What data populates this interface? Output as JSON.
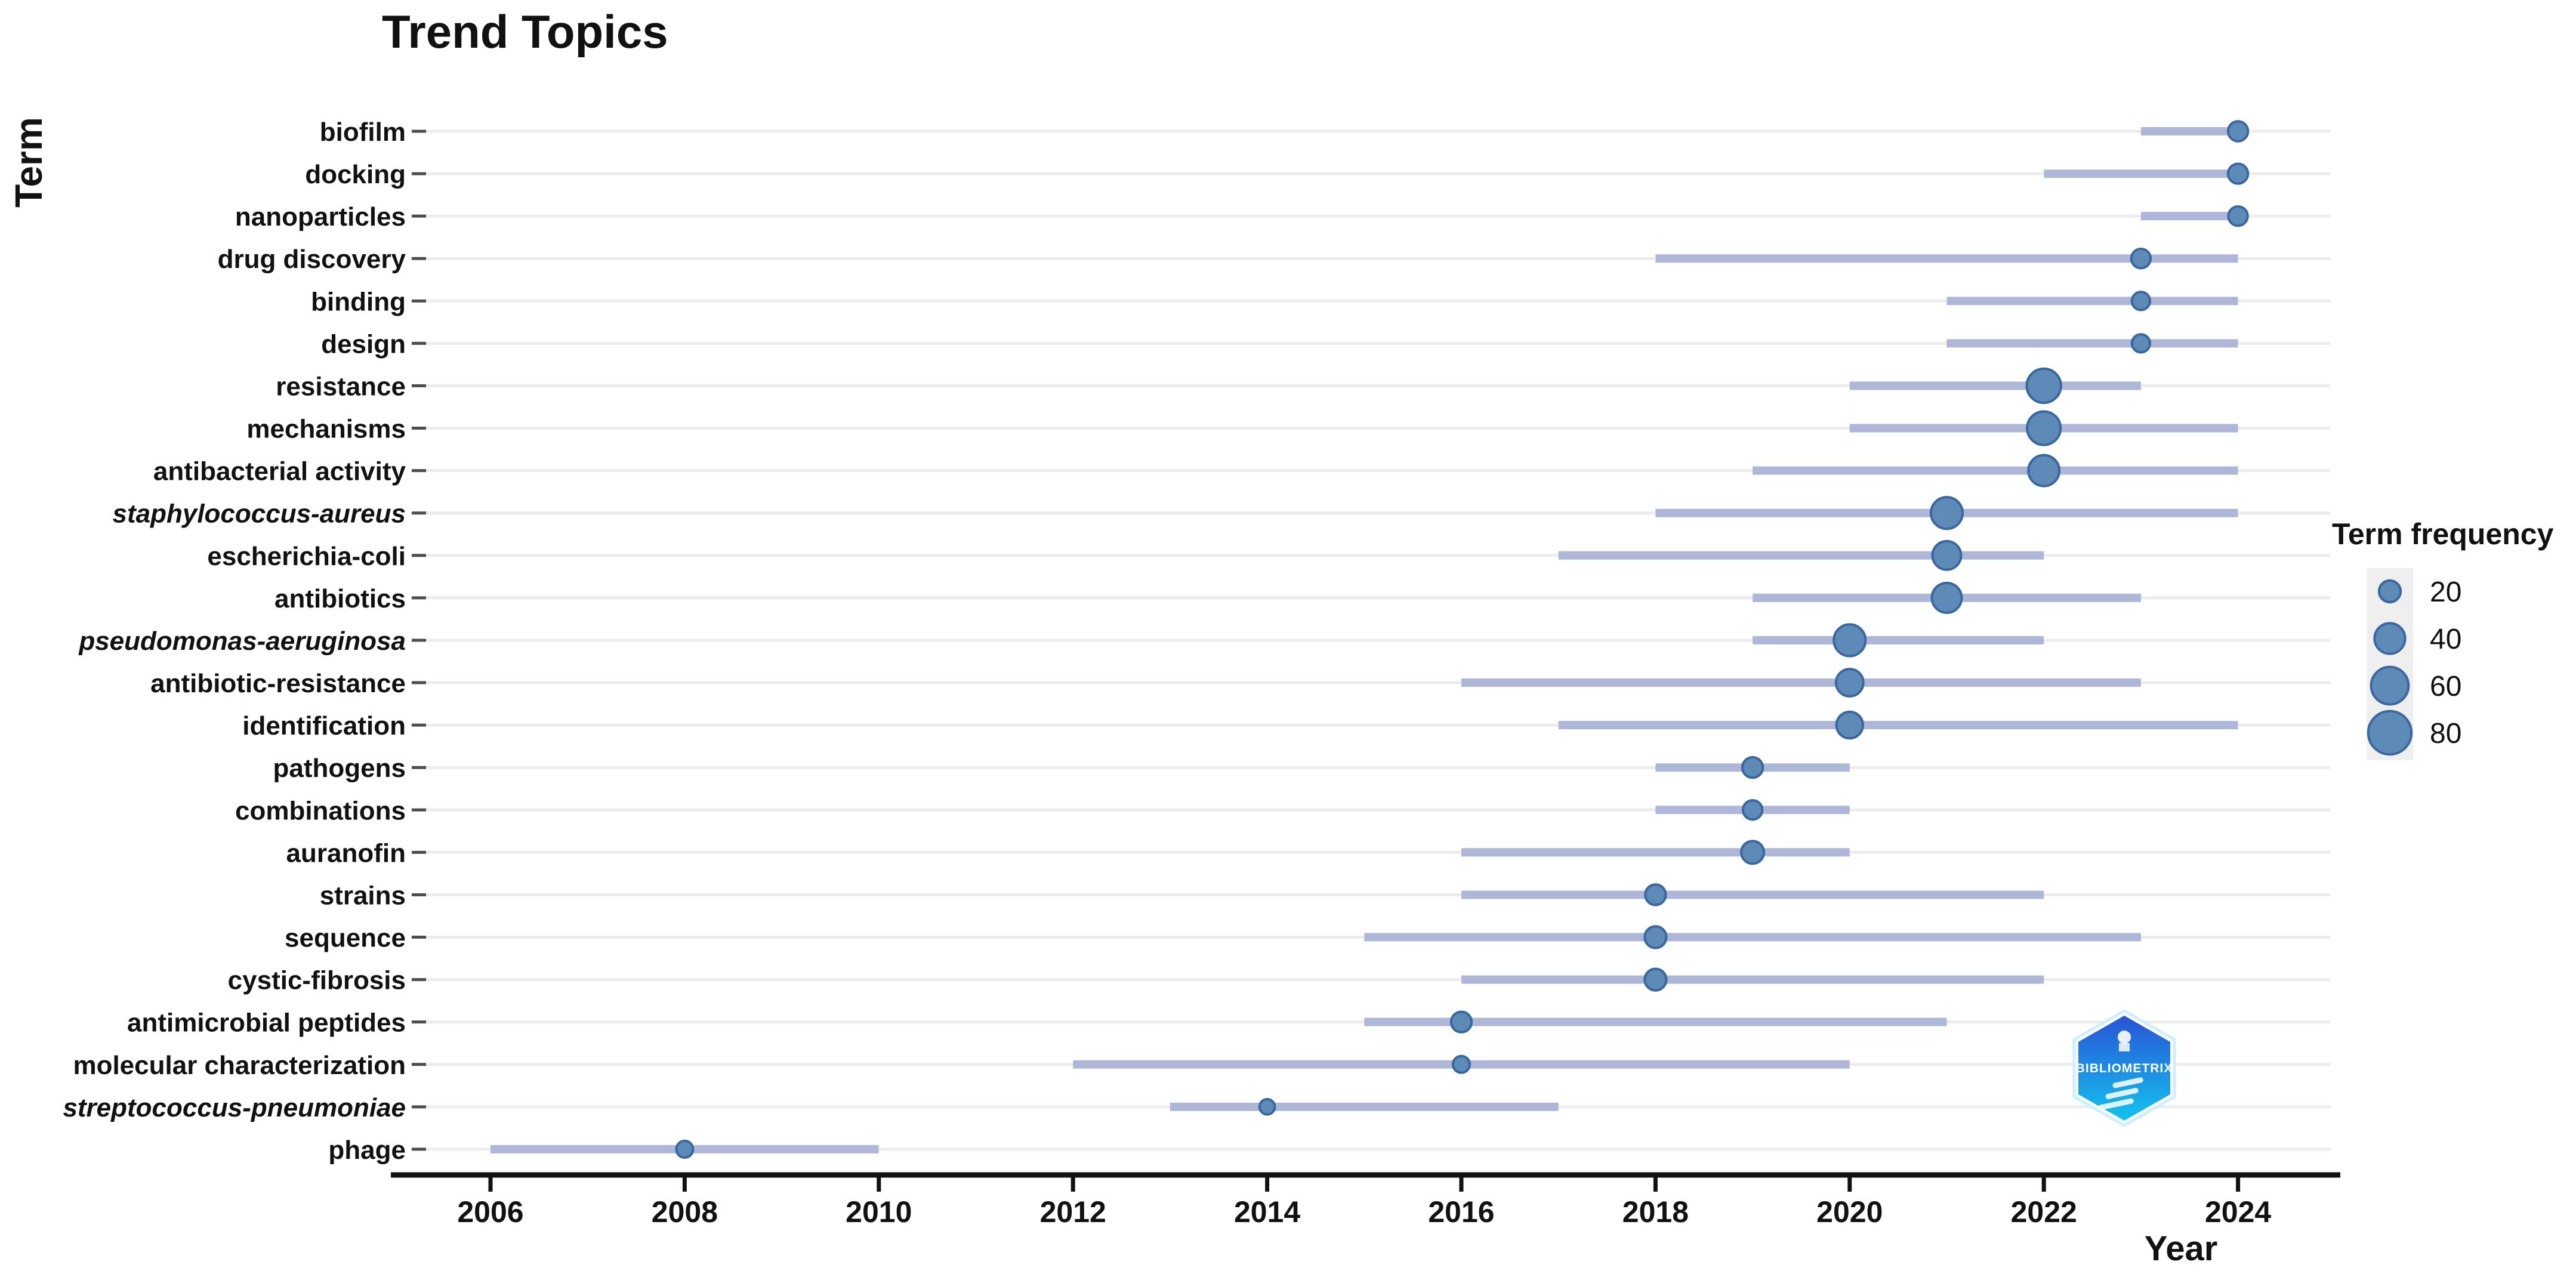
{
  "header": {
    "title": "Trend Topics"
  },
  "axes": {
    "y_label": "Term",
    "x_label": "Year",
    "x_ticks": [
      2006,
      2008,
      2010,
      2012,
      2014,
      2016,
      2018,
      2020,
      2022,
      2024
    ]
  },
  "legend": {
    "title": "Term frequency",
    "sizes": [
      20,
      40,
      60,
      80
    ]
  },
  "watermark": {
    "text": "BIBLIOMETRIX"
  },
  "colors": {
    "dot_fill": "#5d8ab6",
    "dot_stroke": "#3a679f",
    "whisker": "#aeb7d7",
    "gridline": "#ececec",
    "axis": "#111111",
    "y_tick": "#4d4d4d",
    "legend_key_bg": "#efefef",
    "logo_top": "#2953d6",
    "logo_bottom": "#12c4ee",
    "logo_ring": "#cfeefe"
  },
  "chart_data": {
    "type": "scatter",
    "title": "Trend Topics",
    "xlabel": "Year",
    "ylabel": "Term",
    "x_range": [
      2005.2,
      2025.0
    ],
    "x_ticks": [
      2006,
      2008,
      2010,
      2012,
      2014,
      2016,
      2018,
      2020,
      2022,
      2024
    ],
    "grid": "horizontal-only",
    "legend_position": "right",
    "bubble_size_legend": {
      "title": "Term frequency",
      "values": [
        20,
        40,
        60,
        80
      ]
    },
    "terms": [
      {
        "label": "biofilm",
        "italic": false,
        "year_q1": 2023,
        "year_median": 2024,
        "year_q3": 2024,
        "freq": 17
      },
      {
        "label": "docking",
        "italic": false,
        "year_q1": 2022,
        "year_median": 2024,
        "year_q3": 2024,
        "freq": 17
      },
      {
        "label": "nanoparticles",
        "italic": false,
        "year_q1": 2023,
        "year_median": 2024,
        "year_q3": 2024,
        "freq": 16
      },
      {
        "label": "drug discovery",
        "italic": false,
        "year_q1": 2018,
        "year_median": 2023,
        "year_q3": 2024,
        "freq": 16
      },
      {
        "label": "binding",
        "italic": false,
        "year_q1": 2021,
        "year_median": 2023,
        "year_q3": 2024,
        "freq": 14
      },
      {
        "label": "design",
        "italic": false,
        "year_q1": 2021,
        "year_median": 2023,
        "year_q3": 2024,
        "freq": 14
      },
      {
        "label": "resistance",
        "italic": false,
        "year_q1": 2020,
        "year_median": 2022,
        "year_q3": 2023,
        "freq": 50
      },
      {
        "label": "mechanisms",
        "italic": false,
        "year_q1": 2020,
        "year_median": 2022,
        "year_q3": 2024,
        "freq": 48
      },
      {
        "label": "antibacterial activity",
        "italic": false,
        "year_q1": 2019,
        "year_median": 2022,
        "year_q3": 2024,
        "freq": 41
      },
      {
        "label": "staphylococcus-aureus",
        "italic": true,
        "year_q1": 2018,
        "year_median": 2021,
        "year_q3": 2024,
        "freq": 43
      },
      {
        "label": "escherichia-coli",
        "italic": false,
        "year_q1": 2017,
        "year_median": 2021,
        "year_q3": 2022,
        "freq": 35
      },
      {
        "label": "antibiotics",
        "italic": false,
        "year_q1": 2019,
        "year_median": 2021,
        "year_q3": 2023,
        "freq": 38
      },
      {
        "label": "pseudomonas-aeruginosa",
        "italic": true,
        "year_q1": 2019,
        "year_median": 2020,
        "year_q3": 2022,
        "freq": 43
      },
      {
        "label": "antibiotic-resistance",
        "italic": false,
        "year_q1": 2016,
        "year_median": 2020,
        "year_q3": 2023,
        "freq": 32
      },
      {
        "label": "identification",
        "italic": false,
        "year_q1": 2017,
        "year_median": 2020,
        "year_q3": 2024,
        "freq": 30
      },
      {
        "label": "pathogens",
        "italic": false,
        "year_q1": 2018,
        "year_median": 2019,
        "year_q3": 2020,
        "freq": 18
      },
      {
        "label": "combinations",
        "italic": false,
        "year_q1": 2018,
        "year_median": 2019,
        "year_q3": 2020,
        "freq": 16
      },
      {
        "label": "auranofin",
        "italic": false,
        "year_q1": 2016,
        "year_median": 2019,
        "year_q3": 2020,
        "freq": 22
      },
      {
        "label": "strains",
        "italic": false,
        "year_q1": 2016,
        "year_median": 2018,
        "year_q3": 2022,
        "freq": 18
      },
      {
        "label": "sequence",
        "italic": false,
        "year_q1": 2015,
        "year_median": 2018,
        "year_q3": 2023,
        "freq": 20
      },
      {
        "label": "cystic-fibrosis",
        "italic": false,
        "year_q1": 2016,
        "year_median": 2018,
        "year_q3": 2022,
        "freq": 20
      },
      {
        "label": "antimicrobial peptides",
        "italic": false,
        "year_q1": 2015,
        "year_median": 2016,
        "year_q3": 2021,
        "freq": 18
      },
      {
        "label": "molecular characterization",
        "italic": false,
        "year_q1": 2012,
        "year_median": 2016,
        "year_q3": 2020,
        "freq": 12
      },
      {
        "label": "streptococcus-pneumoniae",
        "italic": true,
        "year_q1": 2013,
        "year_median": 2014,
        "year_q3": 2017,
        "freq": 10
      },
      {
        "label": "phage",
        "italic": false,
        "year_q1": 2006,
        "year_median": 2008,
        "year_q3": 2010,
        "freq": 12
      }
    ]
  }
}
